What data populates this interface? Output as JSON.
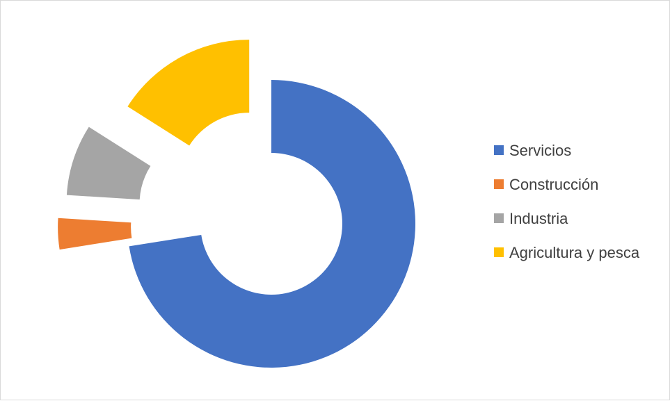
{
  "chart_data": {
    "type": "pie",
    "variant": "exploded-doughnut",
    "title": "",
    "categories": [
      "Servicios",
      "Construcción",
      "Industria",
      "Agricultura y pesca"
    ],
    "values": [
      72.5,
      3.5,
      8,
      16
    ],
    "colors": [
      "#4472c4",
      "#ed7d31",
      "#a5a5a5",
      "#ffc000"
    ],
    "legend": {
      "position": "right",
      "entries": [
        "Servicios",
        "Construcción",
        "Industria",
        "Agricultura y pesca"
      ]
    },
    "data_labels": false
  }
}
